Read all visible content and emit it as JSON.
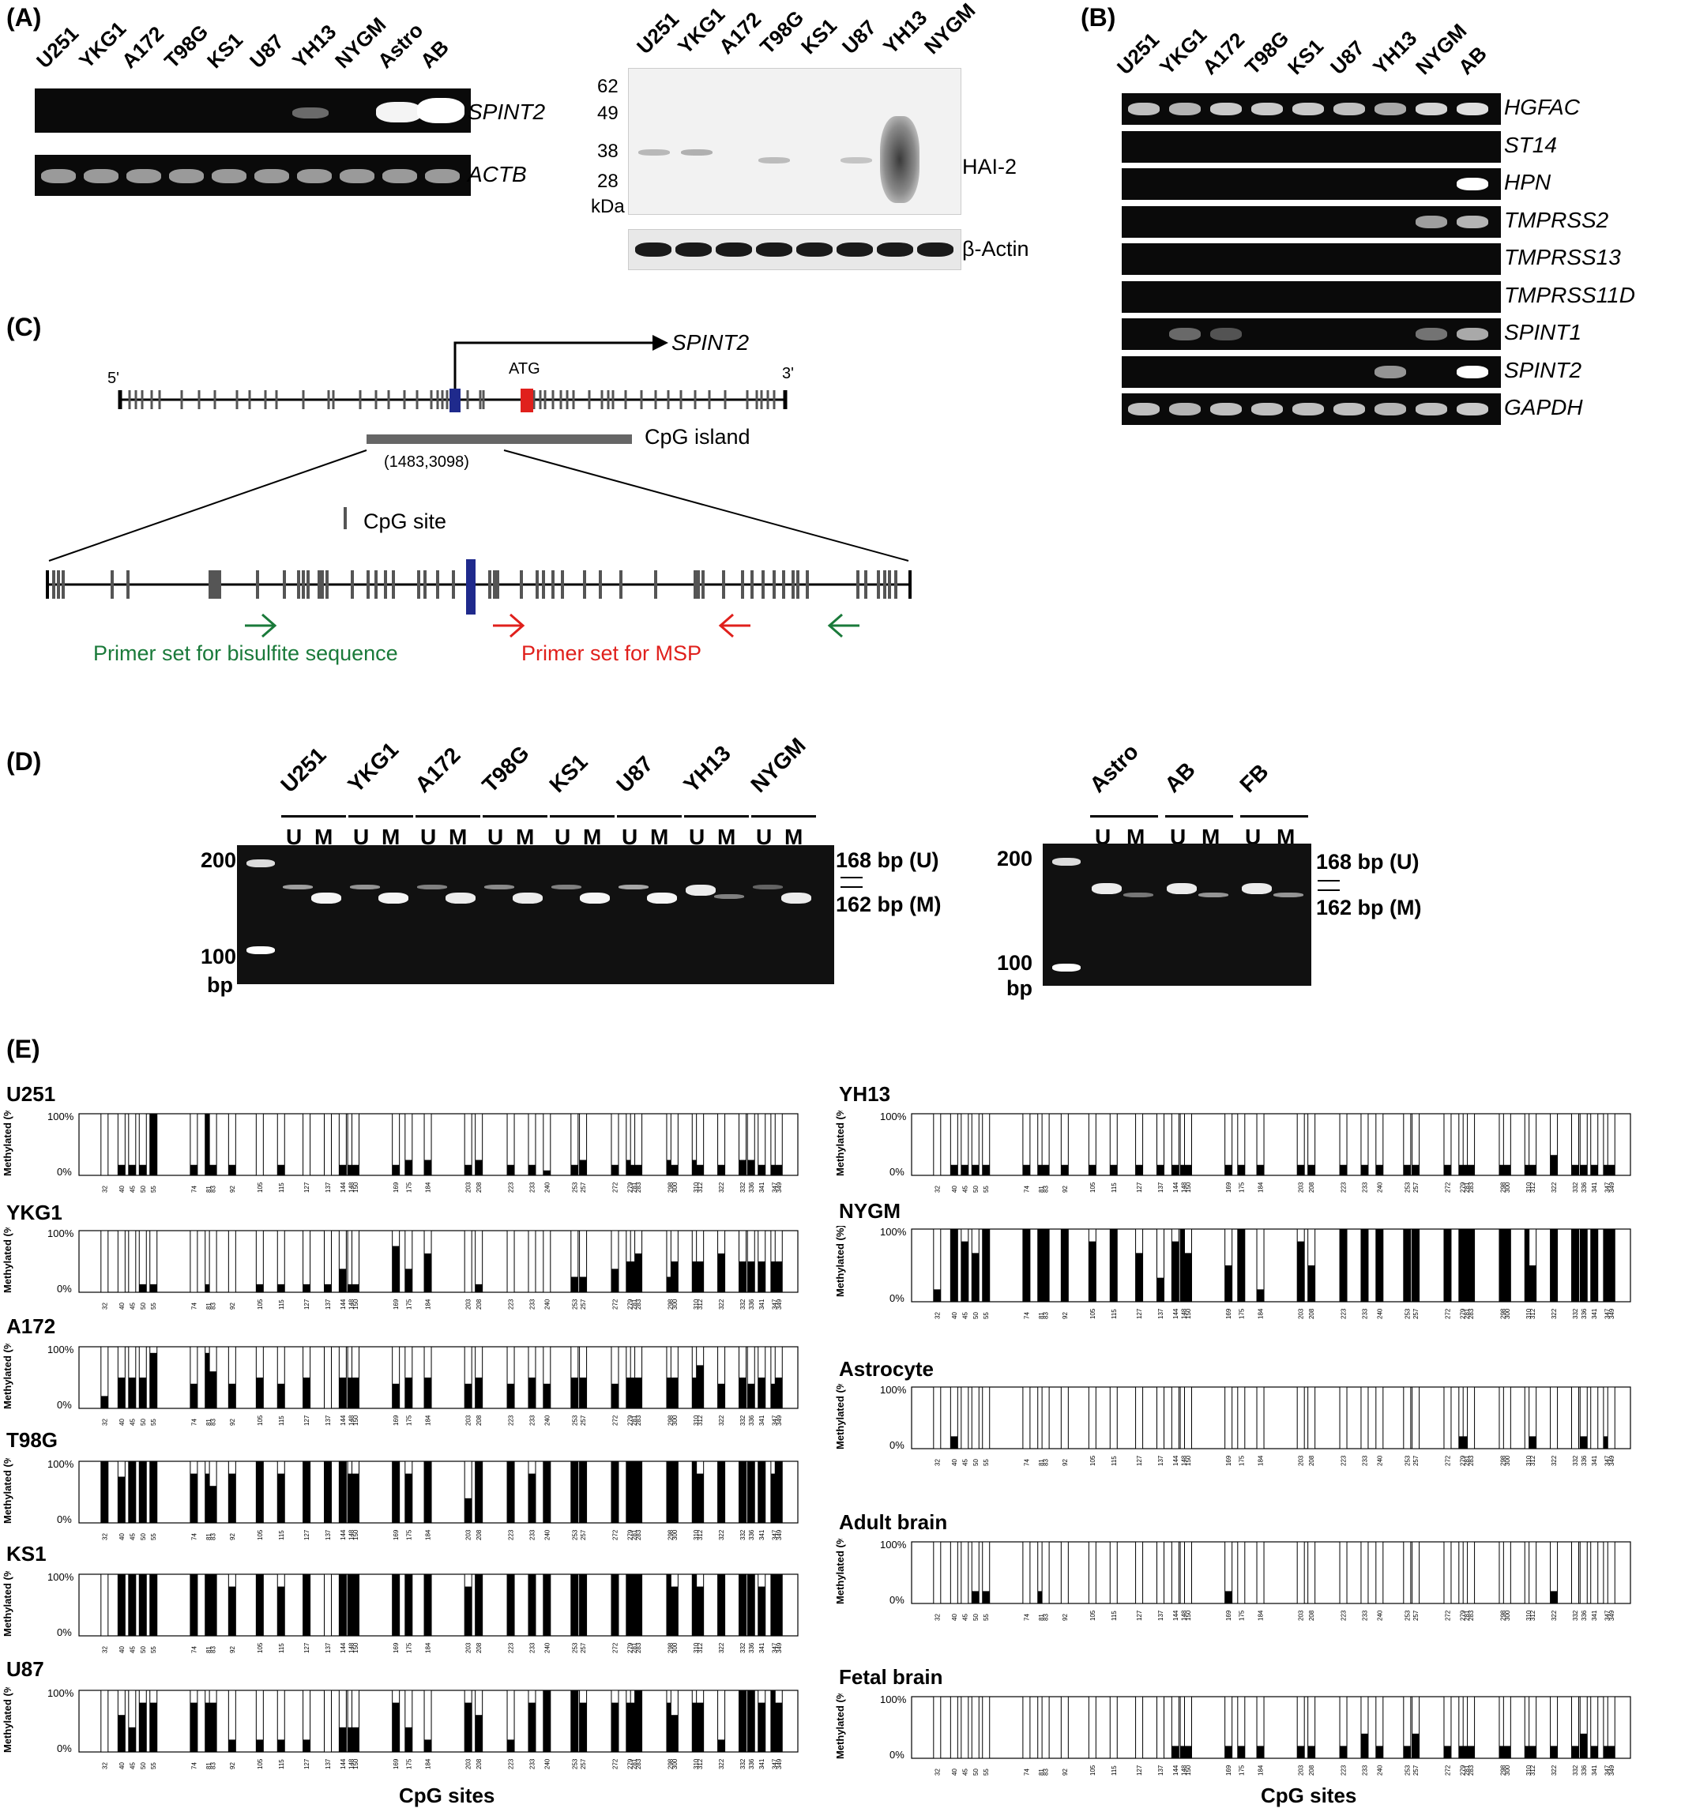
{
  "panelA": {
    "label": "(A)",
    "rt_lanes": [
      "U251",
      "YKG1",
      "A172",
      "T98G",
      "KS1",
      "U87",
      "YH13",
      "NYGM",
      "Astro",
      "AB"
    ],
    "rt_genes": [
      "SPINT2",
      "ACTB"
    ],
    "wb_lanes": [
      "U251",
      "YKG1",
      "A172",
      "T98G",
      "KS1",
      "U87",
      "YH13",
      "NYGM"
    ],
    "wb_markers": [
      "62",
      "49",
      "38",
      "28"
    ],
    "wb_unit": "kDa",
    "wb_target": "HAI-2",
    "wb_loading": "β-Actin"
  },
  "panelB": {
    "label": "(B)",
    "lanes": [
      "U251",
      "YKG1",
      "A172",
      "T98G",
      "KS1",
      "U87",
      "YH13",
      "NYGM",
      "AB"
    ],
    "genes": [
      "HGFAC",
      "ST14",
      "HPN",
      "TMPRSS2",
      "TMPRSS13",
      "TMPRSS11D",
      "SPINT1",
      "SPINT2",
      "GAPDH"
    ]
  },
  "panelC": {
    "label": "(C)",
    "gene": "SPINT2",
    "five_prime": "5'",
    "three_prime": "3'",
    "atg": "ATG",
    "cpg_island": "CpG island",
    "coords": "(1483,3098)",
    "cpg_site": "CpG site",
    "primer_bisulfite": "Primer set for bisulfite sequence",
    "primer_msp": "Primer set for MSP",
    "colors": {
      "green": "#1a7a3a",
      "red": "#e0201c",
      "blue": "#1f2a8c"
    }
  },
  "panelD": {
    "label": "(D)",
    "left_groups": [
      "U251",
      "YKG1",
      "A172",
      "T98G",
      "KS1",
      "U87",
      "YH13",
      "NYGM"
    ],
    "right_groups": [
      "Astro",
      "AB",
      "FB"
    ],
    "u": "U",
    "m": "M",
    "marker_200": "200",
    "marker_100": "100",
    "bp": "bp",
    "band_u": "168 bp (U)",
    "band_m": "162 bp (M)"
  },
  "panelE": {
    "label": "(E)",
    "ylabel": "Methylated (%)",
    "y_top": "100%",
    "y_bottom": "0%",
    "xlabel": "CpG sites",
    "sites": [
      "32",
      "40",
      "45",
      "50",
      "55",
      "74",
      "81",
      "83",
      "92",
      "105",
      "115",
      "127",
      "137",
      "144",
      "148",
      "150",
      "169",
      "175",
      "184",
      "203",
      "208",
      "223",
      "233",
      "240",
      "253",
      "257",
      "272",
      "279",
      "281",
      "283",
      "298",
      "300",
      "310",
      "312",
      "322",
      "332",
      "336",
      "341",
      "347",
      "349"
    ]
  },
  "chart_data": [
    {
      "type": "bar",
      "title": "U251",
      "ylabel": "Methylated (%)",
      "xlabel": "CpG sites",
      "ylim": [
        0,
        100
      ],
      "values": [
        0,
        17,
        17,
        17,
        100,
        17,
        100,
        17,
        17,
        0,
        17,
        0,
        0,
        17,
        17,
        17,
        17,
        25,
        25,
        17,
        25,
        17,
        17,
        8,
        17,
        25,
        17,
        25,
        17,
        17,
        25,
        17,
        25,
        17,
        17,
        25,
        25,
        17,
        17,
        17
      ]
    },
    {
      "type": "bar",
      "title": "YKG1",
      "ylabel": "Methylated (%)",
      "xlabel": "CpG sites",
      "ylim": [
        0,
        100
      ],
      "values": [
        0,
        0,
        0,
        13,
        13,
        0,
        13,
        0,
        0,
        13,
        13,
        13,
        13,
        38,
        13,
        13,
        75,
        38,
        63,
        0,
        13,
        0,
        0,
        0,
        25,
        25,
        38,
        50,
        50,
        63,
        25,
        50,
        50,
        50,
        63,
        50,
        50,
        50,
        50,
        50
      ]
    },
    {
      "type": "bar",
      "title": "A172",
      "ylabel": "Methylated (%)",
      "xlabel": "CpG sites",
      "ylim": [
        0,
        100
      ],
      "values": [
        20,
        50,
        50,
        50,
        90,
        40,
        90,
        60,
        40,
        50,
        40,
        50,
        0,
        50,
        50,
        50,
        40,
        50,
        50,
        40,
        50,
        40,
        50,
        40,
        50,
        50,
        40,
        50,
        50,
        50,
        50,
        50,
        50,
        70,
        40,
        50,
        40,
        50,
        40,
        50
      ]
    },
    {
      "type": "bar",
      "title": "T98G",
      "ylabel": "Methylated (%)",
      "xlabel": "CpG sites",
      "ylim": [
        0,
        100
      ],
      "values": [
        100,
        75,
        100,
        100,
        100,
        80,
        80,
        60,
        80,
        100,
        80,
        100,
        100,
        100,
        80,
        80,
        100,
        80,
        100,
        40,
        100,
        100,
        80,
        100,
        100,
        100,
        100,
        100,
        100,
        100,
        100,
        100,
        100,
        80,
        100,
        100,
        100,
        100,
        80,
        100
      ]
    },
    {
      "type": "bar",
      "title": "KS1",
      "ylabel": "Methylated (%)",
      "xlabel": "CpG sites",
      "ylim": [
        0,
        100
      ],
      "values": [
        0,
        100,
        100,
        100,
        100,
        100,
        100,
        100,
        80,
        100,
        80,
        100,
        0,
        100,
        100,
        100,
        100,
        100,
        100,
        80,
        100,
        100,
        100,
        100,
        100,
        100,
        100,
        100,
        100,
        100,
        100,
        80,
        100,
        80,
        100,
        100,
        100,
        80,
        100,
        100
      ]
    },
    {
      "type": "bar",
      "title": "U87",
      "ylabel": "Methylated (%)",
      "xlabel": "CpG sites",
      "ylim": [
        0,
        100
      ],
      "values": [
        0,
        60,
        40,
        80,
        80,
        80,
        80,
        80,
        20,
        20,
        20,
        20,
        0,
        40,
        40,
        40,
        80,
        40,
        20,
        80,
        60,
        20,
        80,
        100,
        100,
        80,
        80,
        80,
        80,
        100,
        80,
        60,
        80,
        80,
        20,
        100,
        100,
        80,
        100,
        80
      ]
    },
    {
      "type": "bar",
      "title": "YH13",
      "ylabel": "Methylated (%)",
      "xlabel": "CpG sites",
      "ylim": [
        0,
        100
      ],
      "values": [
        0,
        17,
        17,
        17,
        17,
        17,
        17,
        17,
        17,
        17,
        17,
        17,
        17,
        17,
        17,
        17,
        17,
        17,
        17,
        17,
        17,
        17,
        17,
        17,
        17,
        17,
        17,
        17,
        17,
        17,
        17,
        17,
        17,
        17,
        33,
        17,
        17,
        17,
        17,
        17
      ]
    },
    {
      "type": "bar",
      "title": "NYGM",
      "ylabel": "Methylated (%)",
      "xlabel": "CpG sites",
      "ylim": [
        0,
        100
      ],
      "values": [
        17,
        100,
        83,
        67,
        100,
        100,
        100,
        100,
        100,
        83,
        100,
        67,
        33,
        83,
        100,
        67,
        50,
        100,
        17,
        83,
        50,
        100,
        100,
        100,
        100,
        100,
        100,
        100,
        100,
        100,
        100,
        100,
        100,
        50,
        100,
        100,
        100,
        100,
        100,
        100
      ]
    },
    {
      "type": "bar",
      "title": "Astrocyte",
      "ylabel": "Methylated (%)",
      "xlabel": "CpG sites",
      "ylim": [
        0,
        100
      ],
      "values": [
        0,
        20,
        0,
        0,
        0,
        0,
        0,
        0,
        0,
        0,
        0,
        0,
        0,
        0,
        0,
        0,
        0,
        0,
        0,
        0,
        0,
        0,
        0,
        0,
        0,
        0,
        0,
        20,
        20,
        0,
        0,
        0,
        0,
        20,
        0,
        0,
        20,
        0,
        20,
        0
      ]
    },
    {
      "type": "bar",
      "title": "Adult brain",
      "ylabel": "Methylated (%)",
      "xlabel": "CpG sites",
      "ylim": [
        0,
        100
      ],
      "values": [
        0,
        0,
        0,
        20,
        20,
        0,
        20,
        0,
        0,
        0,
        0,
        0,
        0,
        0,
        0,
        0,
        20,
        0,
        0,
        0,
        0,
        0,
        0,
        0,
        0,
        0,
        0,
        0,
        0,
        0,
        0,
        0,
        0,
        0,
        20,
        0,
        0,
        0,
        0,
        0
      ]
    },
    {
      "type": "bar",
      "title": "Fetal brain",
      "ylabel": "Methylated (%)",
      "xlabel": "CpG sites",
      "ylim": [
        0,
        100
      ],
      "values": [
        0,
        0,
        0,
        0,
        0,
        0,
        0,
        0,
        0,
        0,
        0,
        0,
        0,
        20,
        20,
        20,
        20,
        20,
        20,
        20,
        20,
        20,
        40,
        20,
        20,
        40,
        20,
        20,
        20,
        20,
        20,
        20,
        20,
        20,
        20,
        20,
        40,
        20,
        20,
        20
      ]
    }
  ]
}
